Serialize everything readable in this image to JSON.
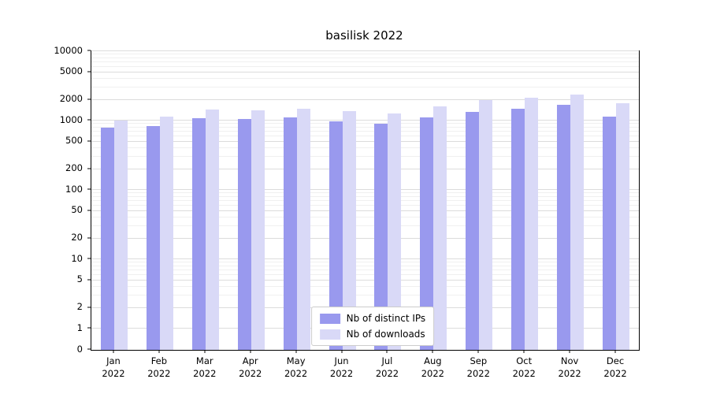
{
  "chart_data": {
    "type": "bar",
    "title": "basilisk 2022",
    "year": "2022",
    "categories": [
      "Jan",
      "Feb",
      "Mar",
      "Apr",
      "May",
      "Jun",
      "Jul",
      "Aug",
      "Sep",
      "Oct",
      "Nov",
      "Dec"
    ],
    "yticks": [
      0,
      1,
      2,
      5,
      10,
      20,
      50,
      100,
      200,
      500,
      1000,
      2000,
      5000,
      10000
    ],
    "ylim": [
      0,
      10000
    ],
    "yscale": "symlog",
    "grid": true,
    "legend_position": "lower center",
    "series": [
      {
        "name": "Nb of distinct IPs",
        "color": "#9999ee",
        "values": [
          800,
          830,
          1080,
          1060,
          1120,
          980,
          900,
          1120,
          1350,
          1500,
          1700,
          1150
        ]
      },
      {
        "name": "Nb of downloads",
        "color": "#d9d9f7",
        "values": [
          1000,
          1140,
          1450,
          1400,
          1480,
          1380,
          1280,
          1620,
          2000,
          2150,
          2400,
          1800
        ]
      }
    ]
  }
}
